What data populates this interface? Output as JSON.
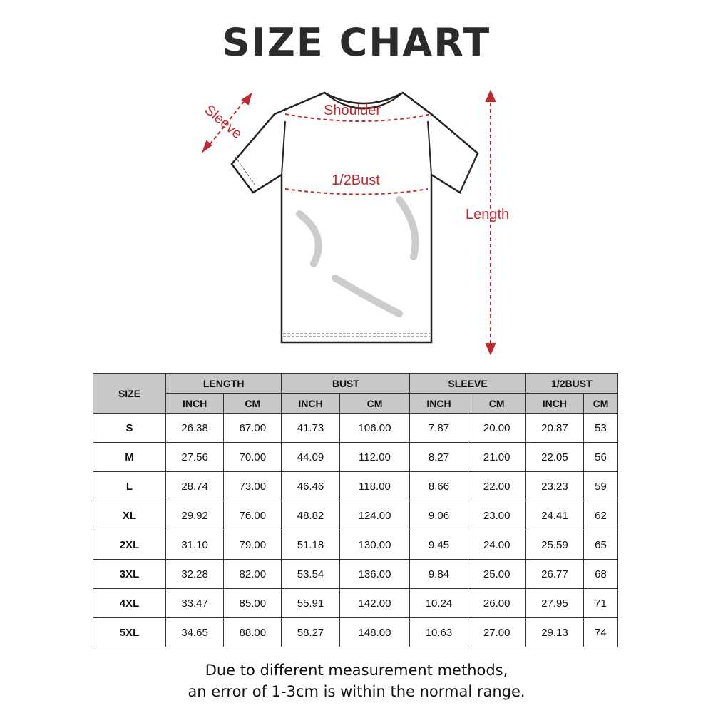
{
  "title": "SIZE CHART",
  "diagram": {
    "labels": {
      "sleeve": "Sleeve",
      "shoulder": "Shoulder",
      "half_bust": "1/2Bust",
      "length": "Length"
    },
    "accent_color": "#c0282d"
  },
  "table": {
    "size_header": "SIZE",
    "groups": [
      "LENGTH",
      "BUST",
      "SLEEVE",
      "1/2BUST"
    ],
    "units": [
      "INCH",
      "CM",
      "INCH",
      "CM",
      "INCH",
      "CM",
      "INCH",
      "CM"
    ],
    "rows": [
      {
        "size": "S",
        "values": [
          "26.38",
          "67.00",
          "41.73",
          "106.00",
          "7.87",
          "20.00",
          "20.87",
          "53"
        ]
      },
      {
        "size": "M",
        "values": [
          "27.56",
          "70.00",
          "44.09",
          "112.00",
          "8.27",
          "21.00",
          "22.05",
          "56"
        ]
      },
      {
        "size": "L",
        "values": [
          "28.74",
          "73.00",
          "46.46",
          "118.00",
          "8.66",
          "22.00",
          "23.23",
          "59"
        ]
      },
      {
        "size": "XL",
        "values": [
          "29.92",
          "76.00",
          "48.82",
          "124.00",
          "9.06",
          "23.00",
          "24.41",
          "62"
        ]
      },
      {
        "size": "2XL",
        "values": [
          "31.10",
          "79.00",
          "51.18",
          "130.00",
          "9.45",
          "24.00",
          "25.59",
          "65"
        ]
      },
      {
        "size": "3XL",
        "values": [
          "32.28",
          "82.00",
          "53.54",
          "136.00",
          "9.84",
          "25.00",
          "26.77",
          "68"
        ]
      },
      {
        "size": "4XL",
        "values": [
          "33.47",
          "85.00",
          "55.91",
          "142.00",
          "10.24",
          "26.00",
          "27.95",
          "71"
        ]
      },
      {
        "size": "5XL",
        "values": [
          "34.65",
          "88.00",
          "58.27",
          "148.00",
          "10.63",
          "27.00",
          "29.13",
          "74"
        ]
      }
    ],
    "header_bg": "#c8c8c8"
  },
  "note": {
    "line1": "Due to different measurement methods,",
    "line2": "an error of 1-3cm is within the normal range."
  }
}
